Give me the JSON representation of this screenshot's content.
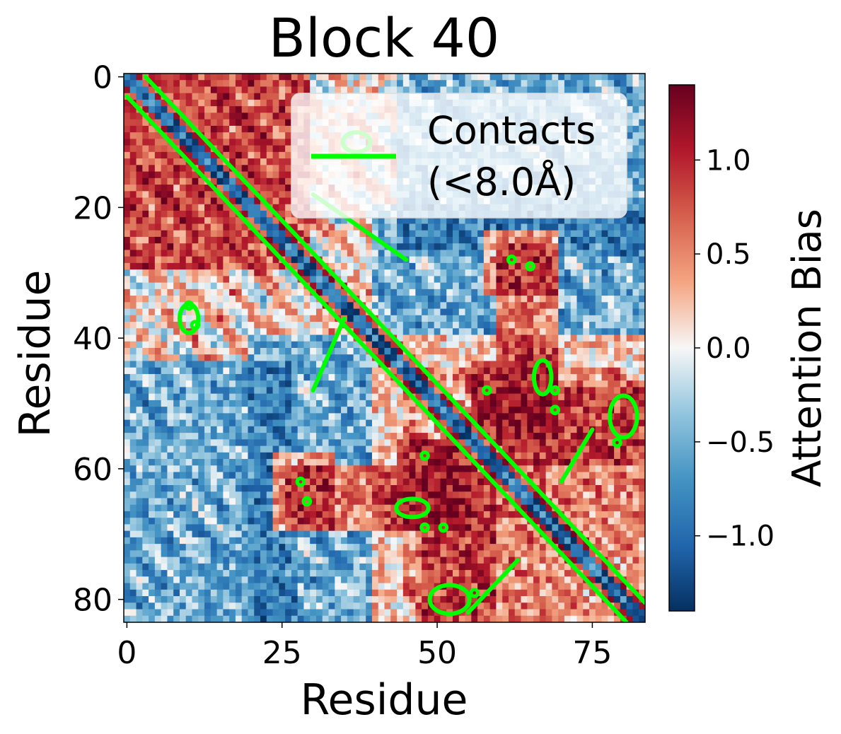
{
  "chart_data": {
    "type": "heatmap",
    "title": "Block 40",
    "xlabel": "Residue",
    "ylabel": "Residue",
    "n_residues": 84,
    "xlim": [
      -0.5,
      83.5
    ],
    "ylim": [
      83.5,
      -0.5
    ],
    "x_ticks": [
      0,
      25,
      50,
      75
    ],
    "x_tick_labels": [
      "0",
      "25",
      "50",
      "75"
    ],
    "y_ticks": [
      0,
      20,
      40,
      60,
      80
    ],
    "y_tick_labels": [
      "0",
      "20",
      "40",
      "60",
      "80"
    ],
    "colormap": "RdBu_r",
    "colorbar": {
      "label": "Attention Bias",
      "vmin": -1.4,
      "vmax": 1.4,
      "ticks": [
        1.0,
        0.5,
        0.0,
        -0.5,
        -1.0
      ],
      "tick_labels": [
        "1.0",
        "0.5",
        "0.0",
        "−0.5",
        "−1.0"
      ]
    },
    "legend": {
      "position": "upper right",
      "entries": [
        {
          "label_line1": "Contacts",
          "label_line2": "(<8.0Å)",
          "color": "#00ff00"
        }
      ]
    },
    "contact_threshold_angstrom": 8.0,
    "contact_line_color": "#00ff00",
    "diagonal_band": {
      "description": "values near the main diagonal",
      "offset_0_value": -0.9,
      "offset_1_value": -1.1,
      "offset_2_value": 0.9,
      "offset_3_value": 0.7
    },
    "blob_regions": [
      {
        "rows": [
          0,
          30
        ],
        "cols": [
          0,
          30
        ],
        "value": 1.0
      },
      {
        "rows": [
          20,
          45
        ],
        "cols": [
          40,
          84
        ],
        "value": -0.8
      },
      {
        "rows": [
          44,
          84
        ],
        "cols": [
          0,
          28
        ],
        "value": -0.8
      },
      {
        "rows": [
          40,
          84
        ],
        "cols": [
          40,
          84
        ],
        "value": 0.6
      },
      {
        "rows": [
          26,
          44
        ],
        "cols": [
          60,
          70
        ],
        "value": 1.0
      },
      {
        "rows": [
          58,
          70
        ],
        "cols": [
          24,
          34
        ],
        "value": 1.0
      },
      {
        "rows": [
          44,
          56
        ],
        "cols": [
          56,
          70
        ],
        "value": 1.1
      },
      {
        "rows": [
          60,
          84
        ],
        "cols": [
          48,
          60
        ],
        "value": 0.9
      }
    ],
    "contact_segments": [
      {
        "from": [
          0,
          3
        ],
        "to": [
          81,
          84
        ]
      },
      {
        "from": [
          3,
          0
        ],
        "to": [
          84,
          81
        ]
      },
      {
        "from": [
          18,
          30
        ],
        "to": [
          28,
          45
        ]
      },
      {
        "from": [
          37,
          35
        ],
        "to": [
          48,
          30
        ]
      },
      {
        "from": [
          62,
          70
        ],
        "to": [
          54,
          75
        ]
      },
      {
        "from": [
          74,
          63
        ],
        "to": [
          82,
          55
        ]
      }
    ],
    "contact_islands": [
      {
        "row": 28,
        "col": 62
      },
      {
        "row": 29,
        "col": 65
      },
      {
        "row": 38,
        "col": 11
      },
      {
        "row": 35,
        "col": 10
      },
      {
        "row": 62,
        "col": 28
      },
      {
        "row": 65,
        "col": 29
      },
      {
        "row": 48,
        "col": 58
      },
      {
        "row": 48,
        "col": 69
      },
      {
        "row": 51,
        "col": 69
      },
      {
        "row": 56,
        "col": 79
      },
      {
        "row": 58,
        "col": 48
      },
      {
        "row": 69,
        "col": 48
      },
      {
        "row": 69,
        "col": 51
      },
      {
        "row": 79,
        "col": 56
      }
    ],
    "contact_blobs": [
      {
        "center": [
          46,
          67
        ],
        "rx": 1.4,
        "ry": 2.6
      },
      {
        "center": [
          66,
          46
        ],
        "rx": 2.6,
        "ry": 1.4
      },
      {
        "center": [
          52,
          80
        ],
        "rx": 2.2,
        "ry": 3.2
      },
      {
        "center": [
          80,
          52
        ],
        "rx": 3.2,
        "ry": 2.2
      },
      {
        "center": [
          37,
          10
        ],
        "rx": 1.5,
        "ry": 2.2
      },
      {
        "center": [
          10,
          37
        ],
        "rx": 2.2,
        "ry": 1.5
      }
    ]
  }
}
